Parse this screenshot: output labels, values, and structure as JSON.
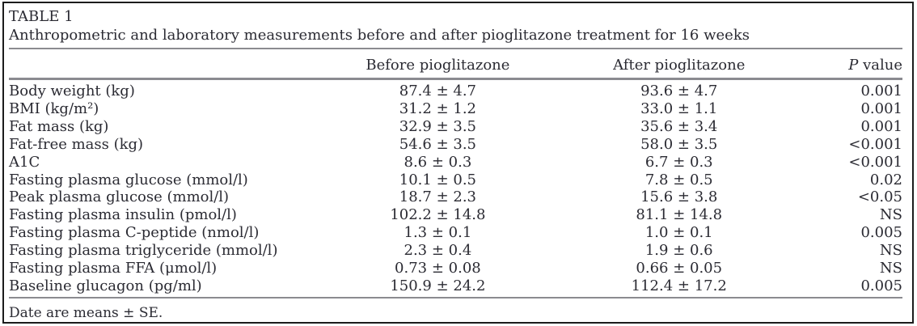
{
  "caption": {
    "label": "TABLE 1",
    "title": "Anthropometric and laboratory measurements before and after pioglitazone treatment for 16 weeks"
  },
  "table": {
    "headers": {
      "parameter": "",
      "before": "Before pioglitazone",
      "after": "After pioglitazone",
      "p_italic": "P",
      "p_rest": " value"
    },
    "rows": [
      {
        "label": "Body weight (kg)",
        "before": "87.4 ± 4.7",
        "after": "93.6 ± 4.7",
        "p": "0.001"
      },
      {
        "label": "BMI (kg/m²)",
        "before": "31.2 ± 1.2",
        "after": "33.0 ± 1.1",
        "p": "0.001"
      },
      {
        "label": "Fat mass (kg)",
        "before": "32.9 ± 3.5",
        "after": "35.6 ± 3.4",
        "p": "0.001"
      },
      {
        "label": "Fat-free mass (kg)",
        "before": "54.6 ± 3.5",
        "after": "58.0 ± 3.5",
        "p": "<0.001"
      },
      {
        "label": "A1C",
        "before": "8.6 ± 0.3",
        "after": "6.7 ± 0.3",
        "p": "<0.001"
      },
      {
        "label": "Fasting plasma glucose (mmol/l)",
        "before": "10.1 ± 0.5",
        "after": "7.8 ± 0.5",
        "p": "0.02"
      },
      {
        "label": "Peak plasma glucose (mmol/l)",
        "before": "18.7 ± 2.3",
        "after": "15.6 ± 3.8",
        "p": "<0.05"
      },
      {
        "label": "Fasting plasma insulin (pmol/l)",
        "before": "102.2 ± 14.8",
        "after": "81.1 ± 14.8",
        "p": "NS"
      },
      {
        "label": "Fasting plasma C-peptide (nmol/l)",
        "before": "1.3 ± 0.1",
        "after": "1.0 ± 0.1",
        "p": "0.005"
      },
      {
        "label": "Fasting plasma triglyceride (mmol/l)",
        "before": "2.3 ± 0.4",
        "after": "1.9 ± 0.6",
        "p": "NS"
      },
      {
        "label": "Fasting plasma FFA (μmol/l)",
        "before": "0.73 ± 0.08",
        "after": "0.66 ± 0.05",
        "p": "NS"
      },
      {
        "label": "Baseline glucagon (pg/ml)",
        "before": "150.9 ± 24.2",
        "after": "112.4 ± 17.2",
        "p": "0.005"
      }
    ]
  },
  "footnote": "Date are means ± SE.",
  "colors": {
    "text": "#2b2b33",
    "rule": "#8b8b90",
    "border": "#1c1c1c",
    "background": "#ffffff"
  }
}
